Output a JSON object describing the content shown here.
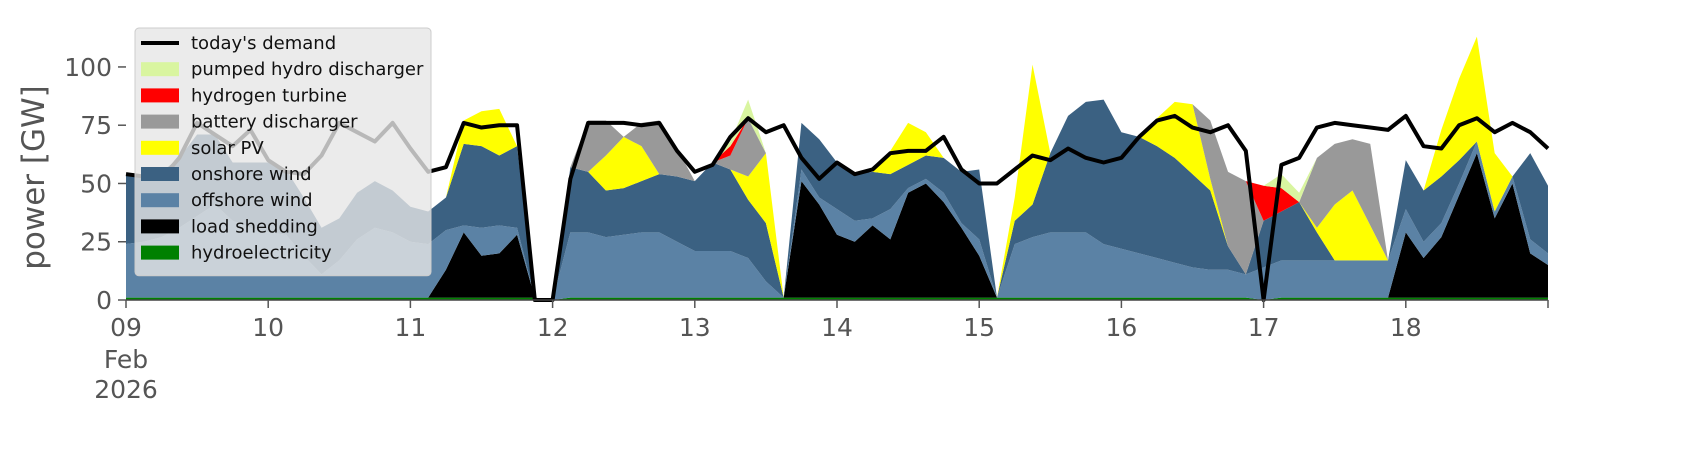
{
  "chart_data": {
    "type": "area",
    "ylabel": "power [GW]",
    "ylim": [
      0,
      118
    ],
    "xlim": [
      "2026-02-09T00:00",
      "2026-02-19T00:00"
    ],
    "yticks": [
      0,
      25,
      50,
      75,
      100
    ],
    "ytick_labels": [
      "0",
      "25",
      "50",
      "75",
      "100"
    ],
    "xticks": [
      "2026-02-09",
      "2026-02-10",
      "2026-02-11",
      "2026-02-12",
      "2026-02-13",
      "2026-02-14",
      "2026-02-15",
      "2026-02-16",
      "2026-02-17",
      "2026-02-18"
    ],
    "xtick_labels": [
      "09",
      "10",
      "11",
      "12",
      "13",
      "14",
      "15",
      "16",
      "17",
      "18"
    ],
    "xtick_sublabel": [
      "Feb",
      "2026"
    ],
    "legend_position": "top-left",
    "grid": false,
    "x": [
      "2026-02-09T00:00",
      "2026-02-09T03:00",
      "2026-02-09T06:00",
      "2026-02-09T09:00",
      "2026-02-09T12:00",
      "2026-02-09T15:00",
      "2026-02-09T18:00",
      "2026-02-09T21:00",
      "2026-02-10T00:00",
      "2026-02-10T03:00",
      "2026-02-10T06:00",
      "2026-02-10T09:00",
      "2026-02-10T12:00",
      "2026-02-10T15:00",
      "2026-02-10T18:00",
      "2026-02-10T21:00",
      "2026-02-11T00:00",
      "2026-02-11T03:00",
      "2026-02-11T06:00",
      "2026-02-11T09:00",
      "2026-02-11T12:00",
      "2026-02-11T15:00",
      "2026-02-11T18:00",
      "2026-02-11T21:00",
      "2026-02-12T00:00",
      "2026-02-12T03:00",
      "2026-02-12T06:00",
      "2026-02-12T09:00",
      "2026-02-12T12:00",
      "2026-02-12T15:00",
      "2026-02-12T18:00",
      "2026-02-12T21:00",
      "2026-02-13T00:00",
      "2026-02-13T03:00",
      "2026-02-13T06:00",
      "2026-02-13T09:00",
      "2026-02-13T12:00",
      "2026-02-13T15:00",
      "2026-02-13T18:00",
      "2026-02-13T21:00",
      "2026-02-14T00:00",
      "2026-02-14T03:00",
      "2026-02-14T06:00",
      "2026-02-14T09:00",
      "2026-02-14T12:00",
      "2026-02-14T15:00",
      "2026-02-14T18:00",
      "2026-02-14T21:00",
      "2026-02-15T00:00",
      "2026-02-15T03:00",
      "2026-02-15T06:00",
      "2026-02-15T09:00",
      "2026-02-15T12:00",
      "2026-02-15T15:00",
      "2026-02-15T18:00",
      "2026-02-15T21:00",
      "2026-02-16T00:00",
      "2026-02-16T03:00",
      "2026-02-16T06:00",
      "2026-02-16T09:00",
      "2026-02-16T12:00",
      "2026-02-16T15:00",
      "2026-02-16T18:00",
      "2026-02-16T21:00",
      "2026-02-17T00:00",
      "2026-02-17T03:00",
      "2026-02-17T06:00",
      "2026-02-17T09:00",
      "2026-02-17T12:00",
      "2026-02-17T15:00",
      "2026-02-17T18:00",
      "2026-02-17T21:00",
      "2026-02-18T00:00",
      "2026-02-18T03:00",
      "2026-02-18T06:00",
      "2026-02-18T09:00",
      "2026-02-18T12:00",
      "2026-02-18T15:00",
      "2026-02-18T18:00",
      "2026-02-18T21:00",
      "2026-02-19T00:00"
    ],
    "series": [
      {
        "name": "hydroelectricity",
        "color": "#008000",
        "kind": "area",
        "values": [
          1,
          1,
          1,
          1,
          1,
          1,
          1,
          1,
          1,
          1,
          1,
          1,
          1,
          1,
          1,
          1,
          1,
          1,
          1,
          1,
          1,
          1,
          1,
          1,
          0,
          1,
          1,
          1,
          1,
          1,
          1,
          1,
          1,
          1,
          1,
          1,
          1,
          1,
          1,
          1,
          1,
          1,
          1,
          1,
          1,
          1,
          1,
          1,
          1,
          1,
          1,
          1,
          1,
          1,
          1,
          1,
          1,
          1,
          1,
          1,
          1,
          1,
          1,
          1,
          0,
          1,
          1,
          1,
          1,
          1,
          1,
          1,
          1,
          1,
          1,
          1,
          1,
          1,
          1,
          1,
          1
        ]
      },
      {
        "name": "load shedding",
        "color": "#000000",
        "kind": "area",
        "values": [
          0,
          0,
          0,
          0,
          0,
          0,
          0,
          0,
          0,
          0,
          0,
          0,
          0,
          0,
          0,
          0,
          0,
          0,
          12,
          28,
          18,
          19,
          27,
          0,
          0,
          0,
          0,
          0,
          0,
          0,
          0,
          0,
          0,
          0,
          0,
          0,
          0,
          0,
          50,
          40,
          27,
          24,
          31,
          25,
          45,
          49,
          41,
          30,
          18,
          0,
          0,
          0,
          0,
          0,
          0,
          0,
          0,
          0,
          0,
          0,
          0,
          0,
          0,
          0,
          0,
          0,
          0,
          0,
          0,
          0,
          0,
          0,
          28,
          17,
          26,
          44,
          62,
          34,
          49,
          19,
          14
        ]
      },
      {
        "name": "offshore wind",
        "color": "#5b82a5",
        "kind": "area",
        "values": [
          23,
          24,
          26,
          30,
          35,
          40,
          33,
          30,
          28,
          27,
          18,
          10,
          16,
          25,
          30,
          28,
          24,
          23,
          17,
          3,
          12,
          12,
          3,
          0,
          0,
          28,
          28,
          26,
          27,
          28,
          28,
          24,
          20,
          20,
          20,
          17,
          7,
          0,
          5,
          3,
          11,
          9,
          3,
          13,
          2,
          2,
          4,
          2,
          7,
          0,
          23,
          26,
          28,
          28,
          28,
          23,
          21,
          19,
          17,
          15,
          13,
          12,
          12,
          10,
          14,
          16,
          16,
          16,
          16,
          16,
          16,
          16,
          10,
          7,
          6,
          5,
          5,
          3,
          3,
          6,
          5
        ]
      },
      {
        "name": "onshore wind",
        "color": "#3b6182",
        "kind": "area",
        "values": [
          30,
          28,
          28,
          30,
          35,
          30,
          25,
          28,
          30,
          28,
          25,
          20,
          18,
          20,
          20,
          18,
          15,
          14,
          14,
          35,
          35,
          30,
          35,
          0,
          0,
          28,
          26,
          20,
          20,
          22,
          25,
          28,
          30,
          38,
          35,
          25,
          25,
          0,
          20,
          25,
          20,
          20,
          20,
          15,
          10,
          10,
          15,
          22,
          30,
          0,
          10,
          14,
          34,
          50,
          56,
          62,
          50,
          50,
          48,
          45,
          40,
          34,
          10,
          0,
          20,
          21,
          25,
          12,
          0,
          0,
          0,
          0,
          21,
          22,
          20,
          10,
          0,
          0,
          0,
          37,
          29
        ]
      },
      {
        "name": "solar PV",
        "color": "#ffff00",
        "kind": "area",
        "values": [
          0,
          0,
          0,
          0,
          0,
          0,
          0,
          0,
          0,
          0,
          0,
          0,
          0,
          0,
          0,
          0,
          0,
          0,
          0,
          10,
          15,
          20,
          0,
          0,
          0,
          0,
          0,
          15,
          22,
          15,
          0,
          0,
          0,
          0,
          0,
          10,
          30,
          0,
          0,
          0,
          0,
          0,
          0,
          10,
          18,
          10,
          0,
          0,
          0,
          0,
          10,
          60,
          0,
          0,
          0,
          0,
          0,
          0,
          12,
          24,
          30,
          5,
          0,
          0,
          0,
          0,
          0,
          2,
          24,
          30,
          15,
          0,
          0,
          0,
          20,
          35,
          45,
          25,
          0,
          0,
          0
        ]
      },
      {
        "name": "battery discharger",
        "color": "#999999",
        "kind": "area",
        "values": [
          0,
          0,
          0,
          0,
          0,
          0,
          0,
          0,
          0,
          0,
          0,
          0,
          0,
          0,
          0,
          0,
          0,
          0,
          0,
          0,
          0,
          0,
          0,
          0,
          0,
          0,
          22,
          15,
          0,
          10,
          23,
          12,
          0,
          0,
          6,
          25,
          0,
          0,
          0,
          0,
          0,
          0,
          0,
          0,
          0,
          0,
          0,
          0,
          0,
          0,
          0,
          0,
          0,
          0,
          0,
          0,
          0,
          0,
          0,
          0,
          0,
          25,
          32,
          40,
          0,
          0,
          0,
          30,
          26,
          22,
          35,
          0,
          0,
          0,
          0,
          0,
          0,
          0,
          0,
          0,
          0
        ]
      },
      {
        "name": "hydrogen turbine",
        "color": "#ff0000",
        "kind": "area",
        "values": [
          0,
          0,
          0,
          0,
          0,
          0,
          0,
          0,
          0,
          0,
          0,
          0,
          0,
          0,
          0,
          0,
          0,
          0,
          0,
          0,
          0,
          0,
          0,
          0,
          0,
          0,
          0,
          0,
          0,
          0,
          0,
          0,
          0,
          0,
          4,
          0,
          0,
          0,
          0,
          0,
          0,
          0,
          0,
          0,
          0,
          0,
          0,
          0,
          0,
          0,
          0,
          0,
          0,
          0,
          0,
          0,
          0,
          0,
          0,
          0,
          0,
          0,
          0,
          0,
          15,
          10,
          0,
          0,
          0,
          0,
          0,
          0,
          0,
          0,
          0,
          0,
          0,
          0,
          0,
          0,
          0
        ]
      },
      {
        "name": "pumped hydro discharger",
        "color": "#d9f5a0",
        "kind": "area",
        "values": [
          0,
          0,
          0,
          0,
          0,
          0,
          0,
          0,
          0,
          0,
          0,
          0,
          0,
          0,
          0,
          0,
          0,
          0,
          0,
          0,
          0,
          0,
          0,
          0,
          0,
          0,
          0,
          0,
          0,
          0,
          0,
          0,
          0,
          0,
          2,
          8,
          0,
          0,
          0,
          0,
          0,
          0,
          0,
          0,
          0,
          0,
          0,
          0,
          0,
          0,
          0,
          0,
          0,
          0,
          0,
          0,
          0,
          0,
          0,
          0,
          0,
          0,
          0,
          0,
          0,
          6,
          4,
          0,
          0,
          0,
          0,
          0,
          0,
          0,
          0,
          0,
          0,
          0,
          0,
          0,
          0
        ]
      },
      {
        "name": "today's demand",
        "color": "#000000",
        "kind": "line",
        "values": [
          54,
          53,
          52,
          61,
          76,
          71,
          66,
          73,
          60,
          55,
          54,
          62,
          76,
          72,
          68,
          76,
          65,
          55,
          57,
          76,
          74,
          75,
          75,
          0,
          0,
          52,
          76,
          76,
          76,
          75,
          76,
          64,
          55,
          58,
          70,
          78,
          72,
          75,
          61,
          52,
          59,
          54,
          56,
          63,
          64,
          64,
          70,
          56,
          50,
          50,
          56,
          62,
          60,
          65,
          61,
          59,
          61,
          70,
          77,
          79,
          74,
          72,
          75,
          64,
          0,
          58,
          61,
          74,
          76,
          75,
          74,
          73,
          79,
          66,
          65,
          75,
          78,
          72,
          76,
          72,
          65
        ]
      }
    ]
  }
}
